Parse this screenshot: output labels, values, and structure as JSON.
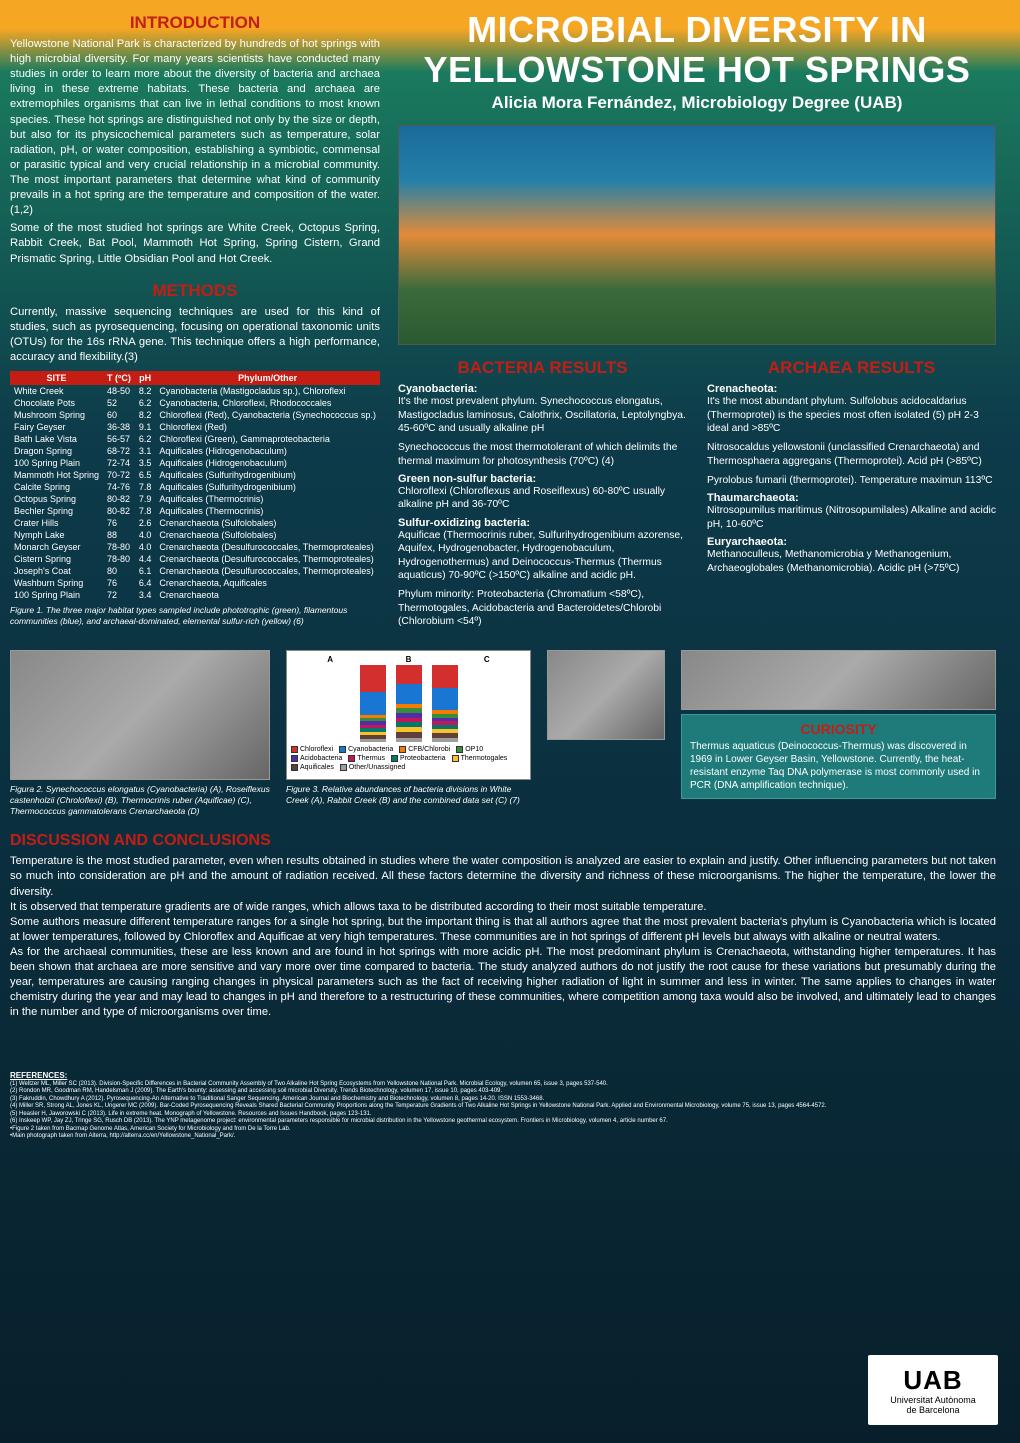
{
  "title": "MICROBIAL DIVERSITY IN YELLOWSTONE HOT SPRINGS",
  "author": "Alicia Mora Fernández, Microbiology Degree (UAB)",
  "sections": {
    "introduction": {
      "heading": "INTRODUCTION",
      "body1": "Yellowstone National Park is characterized by hundreds of hot springs with high microbial diversity. For many years scientists have conducted many studies in order to learn more about the diversity of bacteria and archaea living in these extreme habitats. These bacteria and archaea are extremophiles organisms that can live in lethal conditions to most known species. These hot springs are distinguished not only by the size or depth, but also for its physicochemical parameters such as temperature, solar radiation, pH, or water composition, establishing a symbiotic, commensal or parasitic typical and very crucial relationship in a microbial community. The most important parameters that determine what kind of community prevails in a hot spring are the temperature and composition of the water. (1,2)",
      "body2": "Some of the most studied hot springs are White Creek, Octopus Spring, Rabbit Creek, Bat Pool, Mammoth Hot Spring, Spring Cistern, Grand Prismatic Spring, Little Obsidian Pool and Hot Creek."
    },
    "methods": {
      "heading": "METHODS",
      "body": "Currently, massive sequencing techniques are used for this kind of studies, such as pyrosequencing, focusing on operational taxonomic units (OTUs) for the 16s rRNA gene. This technique offers a high performance, accuracy and flexibility.(3)"
    },
    "bacteria": {
      "heading": "BACTERIA RESULTS",
      "cyano_head": "Cyanobacteria:",
      "cyano_body": "It's the most prevalent phylum. Synechococcus elongatus, Mastigocladus laminosus, Calothrix, Oscillatoria, Leptolyngbya. 45-60ºC and usually alkaline pH",
      "cyano_body2": "Synechococcus the most thermotolerant of which delimits the thermal maximum for photosynthesis (70ºC) (4)",
      "green_head": "Green non-sulfur bacteria:",
      "green_body": "Chloroflexi (Chloroflexus and Roseiflexus) 60-80ºC usually alkaline pH and 36-70ºC",
      "sulfur_head": "Sulfur-oxidizing bacteria:",
      "sulfur_body": "Aquificae (Thermocrinis ruber, Sulfurihydrogenibium azorense, Aquifex, Hydrogenobacter, Hydrogenobaculum, Hydrogenothermus) and Deinococcus-Thermus (Thermus aquaticus) 70-90ºC (>150ºC) alkaline and acidic pH.",
      "minor_body": "Phylum minority: Proteobacteria (Chromatium <58ºC), Thermotogales, Acidobacteria and Bacteroidetes/Chlorobi (Chlorobium <54º)"
    },
    "archaea": {
      "heading": "ARCHAEA RESULTS",
      "cre_head": "Crenacheota:",
      "cre_body": "It's the most abundant phylum. Sulfolobus acidocaldarius (Thermoprotei) is the species most often isolated (5) pH 2-3 ideal and >85ºC",
      "cre_body2": "Nitrosocaldus yellowstonii (unclassified Crenarchaeota) and Thermosphaera aggregans (Thermoprotei). Acid pH (>85ºC)",
      "cre_body3": "Pyrolobus fumarii (thermoprotei). Temperature maximun 113ºC",
      "thaum_head": "Thaumarchaeota:",
      "thaum_body": "Nitrosopumilus maritimus (Nitrosopumilales) Alkaline and acidic pH, 10-60ºC",
      "eury_head": "Euryarchaeota:",
      "eury_body": "Methanoculleus, Methanomicrobia y Methanogenium, Archaeoglobales (Methanomicrobia). Acidic pH (>75ºC)"
    },
    "curiosity": {
      "heading": "CURIOSITY",
      "body": "Thermus aquaticus (Deinococcus-Thermus) was discovered in 1969 in Lower Geyser Basin, Yellowstone. Currently, the heat-resistant enzyme Taq DNA polymerase is most commonly used in PCR (DNA amplification technique)."
    },
    "discussion": {
      "heading": "DISCUSSION AND CONCLUSIONS",
      "p1": "Temperature is the most studied parameter, even when results obtained in studies where the water composition is analyzed are easier to explain and justify. Other influencing parameters but not taken so much into consideration are pH and the amount of radiation received. All these factors determine the diversity and richness of these microorganisms. The higher the temperature, the lower the diversity.",
      "p2": "It is observed that temperature gradients are of wide ranges, which allows taxa to be distributed according to their most suitable temperature.",
      "p3": "Some authors measure different temperature ranges for a single hot spring, but the important thing is that all authors agree that the most prevalent bacteria's phylum is Cyanobacteria which is located at lower temperatures, followed by Chloroflex and Aquificae at very high temperatures. These communities are in hot springs of different pH levels but always with alkaline or neutral waters.",
      "p4": "As for the archaeal communities, these are less known and are found in hot springs with more acidic pH. The most predominant phylum is Crenachaeota, withstanding higher temperatures. It has been shown that archaea are more sensitive and vary more over time compared to bacteria. The study analyzed authors do not justify the root cause for these variations but presumably during the year, temperatures are causing ranging changes in physical parameters such as the fact of receiving higher radiation of light in summer and less in winter. The same applies to changes in water chemistry during the year and may lead to changes in pH and therefore to a restructuring of these communities, where competition among taxa would also be involved, and ultimately lead to changes in the number and type of microorganisms over time."
    }
  },
  "table": {
    "headers": [
      "SITE",
      "T (ºC)",
      "pH",
      "Phylum/Other"
    ],
    "rows": [
      [
        "White Creek",
        "48-50",
        "8.2",
        "Cyanobacteria (Mastigocladus sp.), Chloroflexi"
      ],
      [
        "Chocolate Pots",
        "52",
        "6.2",
        "Cyanobacteria, Chloroflexi, Rhodococcales"
      ],
      [
        "Mushroom Spring",
        "60",
        "8.2",
        "Chloroflexi (Red), Cyanobacteria (Synechococcus sp.)"
      ],
      [
        "Fairy Geyser",
        "36-38",
        "9.1",
        "Chloroflexi (Red)"
      ],
      [
        "Bath Lake Vista",
        "56-57",
        "6.2",
        "Chloroflexi (Green), Gammaproteobacteria"
      ],
      [
        "Dragon Spring",
        "68-72",
        "3.1",
        "Aquificales (Hidrogenobaculum)"
      ],
      [
        "100 Spring Plain",
        "72-74",
        "3.5",
        "Aquificales (Hidrogenobaculum)"
      ],
      [
        "Mammoth Hot Spring",
        "70-72",
        "6.5",
        "Aquificales (Sulfurihydrogenibium)"
      ],
      [
        "Calcite Spring",
        "74-76",
        "7.8",
        "Aquificales (Sulfurihydrogenibium)"
      ],
      [
        "Octopus Spring",
        "80-82",
        "7.9",
        "Aquificales (Thermocrinis)"
      ],
      [
        "Bechler Spring",
        "80-82",
        "7.8",
        "Aquificales (Thermocrinis)"
      ],
      [
        "Crater Hills",
        "76",
        "2.6",
        "Crenarchaeota (Sulfolobales)"
      ],
      [
        "Nymph Lake",
        "88",
        "4.0",
        "Crenarchaeota (Sulfolobales)"
      ],
      [
        "Monarch Geyser",
        "78-80",
        "4.0",
        "Crenarchaeota (Desulfurococcales, Thermoproteales)"
      ],
      [
        "Cistern Spring",
        "78-80",
        "4.4",
        "Crenarchaeota (Desulfurococcales, Thermoproteales)"
      ],
      [
        "Joseph's Coat",
        "80",
        "6.1",
        "Crenarchaeota (Desulfurococcales, Thermoproteales)"
      ],
      [
        "Washburn Spring",
        "76",
        "6.4",
        "Crenarchaeota, Aquificales"
      ],
      [
        "100 Spring Plain",
        "72",
        "3.4",
        "Crenarchaeota"
      ]
    ]
  },
  "figures": {
    "f1": "Figure 1. The three major habitat types sampled include phototrophic (green), filamentous communities (blue), and archaeal-dominated, elemental sulfur-rich (yellow) (6)",
    "f2": "Figura 2. Synechococcus elongatus (Cyanobacteria) (A), Roseiflexus castenholzii (Chroloflexi) (B), Thermocrinis ruber (Aquificae) (C), Thermococcus gammatolerans Crenarchaeota (D)",
    "f3": "Figure 3. Relative abundances of bacteria divisions in White Creek (A), Rabbit Creek (B) and the combined data set (C) (7)"
  },
  "chart": {
    "labels": [
      "A",
      "B",
      "C"
    ],
    "legend": [
      {
        "name": "Chloroflexi",
        "color": "#d32f2f"
      },
      {
        "name": "Cyanobacteria",
        "color": "#1976d2"
      },
      {
        "name": "CFB/Chlorobi",
        "color": "#f57c00"
      },
      {
        "name": "OP10",
        "color": "#388e3c"
      },
      {
        "name": "Acidobacteria",
        "color": "#512da8"
      },
      {
        "name": "Thermus",
        "color": "#c2185b"
      },
      {
        "name": "Proteobacteria",
        "color": "#00796b"
      },
      {
        "name": "Thermotogales",
        "color": "#fbc02d"
      },
      {
        "name": "Aquificales",
        "color": "#5d4037"
      },
      {
        "name": "Other/Unassigned",
        "color": "#9e9e9e"
      }
    ],
    "stacks": [
      [
        35,
        30,
        4,
        4,
        4,
        5,
        5,
        4,
        5,
        4
      ],
      [
        25,
        25,
        6,
        6,
        6,
        6,
        6,
        6,
        8,
        6
      ],
      [
        30,
        28,
        5,
        5,
        5,
        5,
        5,
        5,
        6,
        6
      ]
    ]
  },
  "refs": {
    "heading": "REFERENCES:",
    "items": [
      "(1) Weltzer ML, Miller SC (2013). Division-Specific Differences in Bacterial Community Assembly of Two Alkaline Hot Spring Ecosystems from Yellowstone National Park. Microbial Ecology, volumen 65, issue 3, pages 537-540.",
      "(2) Rondon MR, Goodman RM, Handelsman J (2009). The Earth's bounty: assessing and accessing soil microbial Diversity. Trends Biotechnology, volumen 17, issue 10, pages 403-409.",
      "(3) Fakruddin, Chowdhury A (2012). Pyrosequencing-An Alternative to Traditional Sanger Sequencing. American Journal and Biochemistry and Biotechnology, volumen 8, pages 14-20. ISSN 1553-3468.",
      "(4) Miller SR, Strong AL, Jones KL, Ungerer MC (2009). Bar-Coded Pyrosequencing Reveals Shared Bacterial Community Proportions along the Temperature Gradients of Two Alkaline Hot Springs in Yellowstone National Park. Applied and Environmental Microbiology, volume 75, issue 13, pages 4564-4572.",
      "(5) Heasler H, Jaworowski C (2013). Life in extreme heat. Monograph of Yellowstone. Resources and Issues Handbook, pages 123-131.",
      "(6) Inskeep WP, Jay ZJ, Tringe SG, Rusch DB (2013). The YNP metagenome project: environmental parameters responsible for microbial distribution in the Yellowstone geothermal ecosystem. Frontiers in Microbiology, volumen 4, article number 67.",
      "•Figure 2 taken from Bacmap Genome Atlas, American Society for Microbiology and from De la Torre Lab.",
      "•Main photograph taken from Alterra, http://alterra.cc/en/Yellowstone_National_Park/."
    ]
  },
  "uab": {
    "top": "UAB",
    "line1": "Universitat Autònoma",
    "line2": "de Barcelona"
  },
  "colors": {
    "red": "#c41e14",
    "white": "#ffffff",
    "curiosity_bg": "#1f7a7a"
  }
}
